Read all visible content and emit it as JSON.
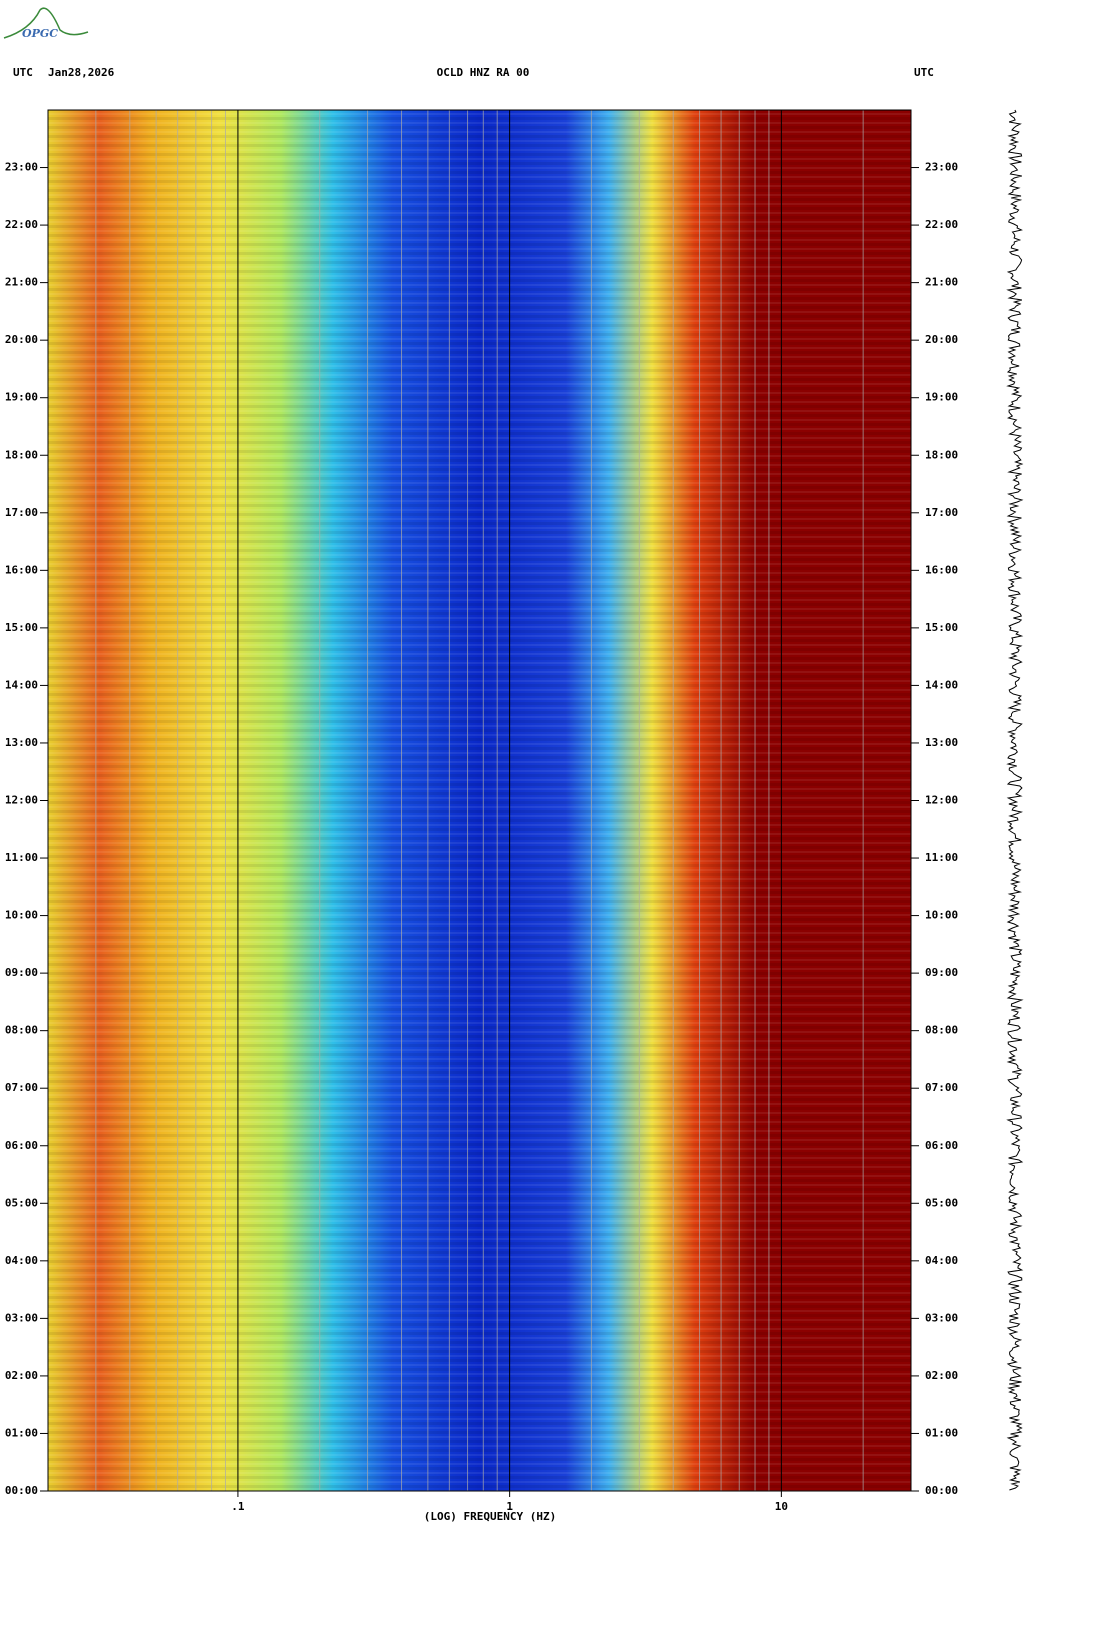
{
  "logo": "OPGC",
  "chart_data": {
    "type": "spectrogram",
    "title": "OCLD HNZ RA 00",
    "timezone_left": "UTC",
    "date": "Jan28,2026",
    "timezone_right": "UTC",
    "xlabel": "(LOG) FREQUENCY (HZ)",
    "xscale": "log",
    "xlim": [
      0.02,
      30
    ],
    "xticks": [
      {
        "value": 0.1,
        "label": ".1"
      },
      1,
      10
    ],
    "ylim": [
      0,
      24
    ],
    "yticks": [
      {
        "value": 0,
        "label": "00:00"
      },
      {
        "value": 1,
        "label": "01:00"
      },
      {
        "value": 2,
        "label": "02:00"
      },
      {
        "value": 3,
        "label": "03:00"
      },
      {
        "value": 4,
        "label": "04:00"
      },
      {
        "value": 5,
        "label": "05:00"
      },
      {
        "value": 6,
        "label": "06:00"
      },
      {
        "value": 7,
        "label": "07:00"
      },
      {
        "value": 8,
        "label": "08:00"
      },
      {
        "value": 9,
        "label": "09:00"
      },
      {
        "value": 10,
        "label": "10:00"
      },
      {
        "value": 11,
        "label": "11:00"
      },
      {
        "value": 12,
        "label": "12:00"
      },
      {
        "value": 13,
        "label": "13:00"
      },
      {
        "value": 14,
        "label": "14:00"
      },
      {
        "value": 15,
        "label": "15:00"
      },
      {
        "value": 16,
        "label": "16:00"
      },
      {
        "value": 17,
        "label": "17:00"
      },
      {
        "value": 18,
        "label": "18:00"
      },
      {
        "value": 19,
        "label": "19:00"
      },
      {
        "value": 20,
        "label": "20:00"
      },
      {
        "value": 21,
        "label": "21:00"
      },
      {
        "value": 22,
        "label": "22:00"
      },
      {
        "value": 23,
        "label": "23:00"
      }
    ]
  }
}
